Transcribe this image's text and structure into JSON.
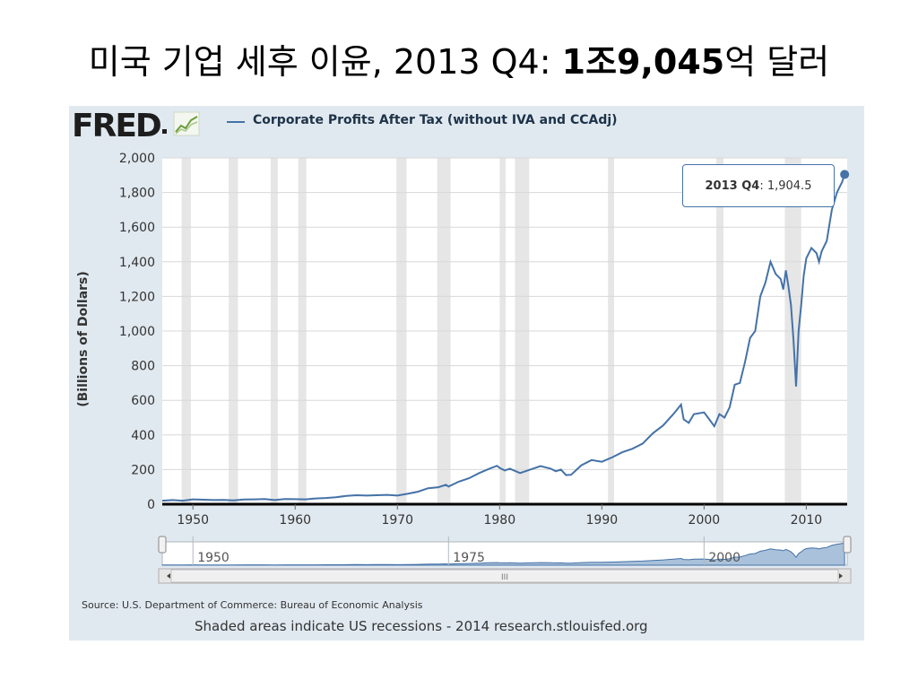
{
  "slide": {
    "title_prefix": "미국 기업 세후 이윤, 2013 Q4: ",
    "title_bold": "1조9,045",
    "title_suffix": "억 달러"
  },
  "fred": {
    "logo": "FRED",
    "source": "Source: U.S. Department of Commerce: Bureau of Economic Analysis",
    "shaded_note": "Shaded areas indicate US recessions - 2014 research.stlouisfed.org",
    "tooltip_label": "2013 Q4",
    "tooltip_value": ": 1,904.5",
    "navigator_labels": [
      "1950",
      "1975",
      "2000"
    ],
    "scroll_grip": "III"
  },
  "chart_data": {
    "type": "line",
    "title": "Corporate Profits After Tax (without IVA and CCAdj)",
    "ylabel": "(Billions of Dollars)",
    "xlabel": "",
    "ylim": [
      0,
      2000
    ],
    "xlim": [
      1947,
      2014
    ],
    "yticks": [
      0,
      200,
      400,
      600,
      800,
      1000,
      1200,
      1400,
      1600,
      1800,
      2000
    ],
    "yticklabels": [
      "0",
      "200",
      "400",
      "600",
      "800",
      "1,000",
      "1,200",
      "1,400",
      "1,600",
      "1,800",
      "2,000"
    ],
    "xticks": [
      1950,
      1960,
      1970,
      1980,
      1990,
      2000,
      2010
    ],
    "xticklabels": [
      "1950",
      "1960",
      "1970",
      "1980",
      "1990",
      "2000",
      "2010"
    ],
    "grid": "horizontal",
    "legend": "top",
    "color": "#4572a7",
    "recessions": [
      [
        1948.9,
        1949.8
      ],
      [
        1953.5,
        1954.4
      ],
      [
        1957.6,
        1958.3
      ],
      [
        1960.3,
        1961.1
      ],
      [
        1969.9,
        1970.9
      ],
      [
        1973.9,
        1975.2
      ],
      [
        1980.0,
        1980.6
      ],
      [
        1981.5,
        1982.9
      ],
      [
        1990.6,
        1991.2
      ],
      [
        2001.2,
        2001.9
      ],
      [
        2007.9,
        2009.5
      ]
    ],
    "series": [
      {
        "name": "Corporate Profits After Tax (without IVA and CCAdj)",
        "x": [
          1947.0,
          1948.0,
          1949.0,
          1950.0,
          1951.0,
          1952.0,
          1953.0,
          1954.0,
          1955.0,
          1956.0,
          1957.0,
          1958.0,
          1959.0,
          1960.0,
          1961.0,
          1962.0,
          1963.0,
          1964.0,
          1965.0,
          1966.0,
          1967.0,
          1968.0,
          1969.0,
          1970.0,
          1971.0,
          1972.0,
          1973.0,
          1974.0,
          1974.75,
          1975.0,
          1976.0,
          1977.0,
          1978.0,
          1979.0,
          1979.75,
          1980.0,
          1980.5,
          1981.0,
          1982.0,
          1983.0,
          1984.0,
          1985.0,
          1985.5,
          1986.0,
          1986.5,
          1987.0,
          1988.0,
          1989.0,
          1990.0,
          1991.0,
          1992.0,
          1993.0,
          1994.0,
          1995.0,
          1996.0,
          1997.0,
          1997.75,
          1998.0,
          1998.5,
          1999.0,
          2000.0,
          2000.5,
          2001.0,
          2001.5,
          2002.0,
          2002.5,
          2003.0,
          2003.5,
          2004.0,
          2004.5,
          2005.0,
          2005.5,
          2006.0,
          2006.5,
          2007.0,
          2007.5,
          2007.75,
          2008.0,
          2008.25,
          2008.5,
          2008.75,
          2009.0,
          2009.25,
          2009.5,
          2009.75,
          2010.0,
          2010.5,
          2011.0,
          2011.25,
          2011.5,
          2012.0,
          2012.5,
          2013.0,
          2013.25,
          2013.5,
          2013.75
        ],
        "y": [
          20,
          24,
          20,
          28,
          26,
          24,
          25,
          22,
          27,
          28,
          30,
          24,
          30,
          29,
          28,
          33,
          36,
          40,
          48,
          52,
          50,
          52,
          54,
          50,
          60,
          72,
          92,
          98,
          112,
          102,
          130,
          150,
          180,
          205,
          222,
          210,
          195,
          205,
          180,
          200,
          220,
          205,
          190,
          200,
          168,
          170,
          225,
          255,
          245,
          270,
          300,
          320,
          350,
          410,
          455,
          520,
          575,
          490,
          470,
          520,
          530,
          490,
          450,
          520,
          500,
          560,
          690,
          700,
          820,
          960,
          1000,
          1200,
          1280,
          1400,
          1330,
          1300,
          1240,
          1350,
          1260,
          1150,
          950,
          680,
          1000,
          1150,
          1320,
          1420,
          1480,
          1450,
          1400,
          1460,
          1520,
          1700,
          1800,
          1830,
          1860,
          1904.5
        ]
      }
    ]
  }
}
